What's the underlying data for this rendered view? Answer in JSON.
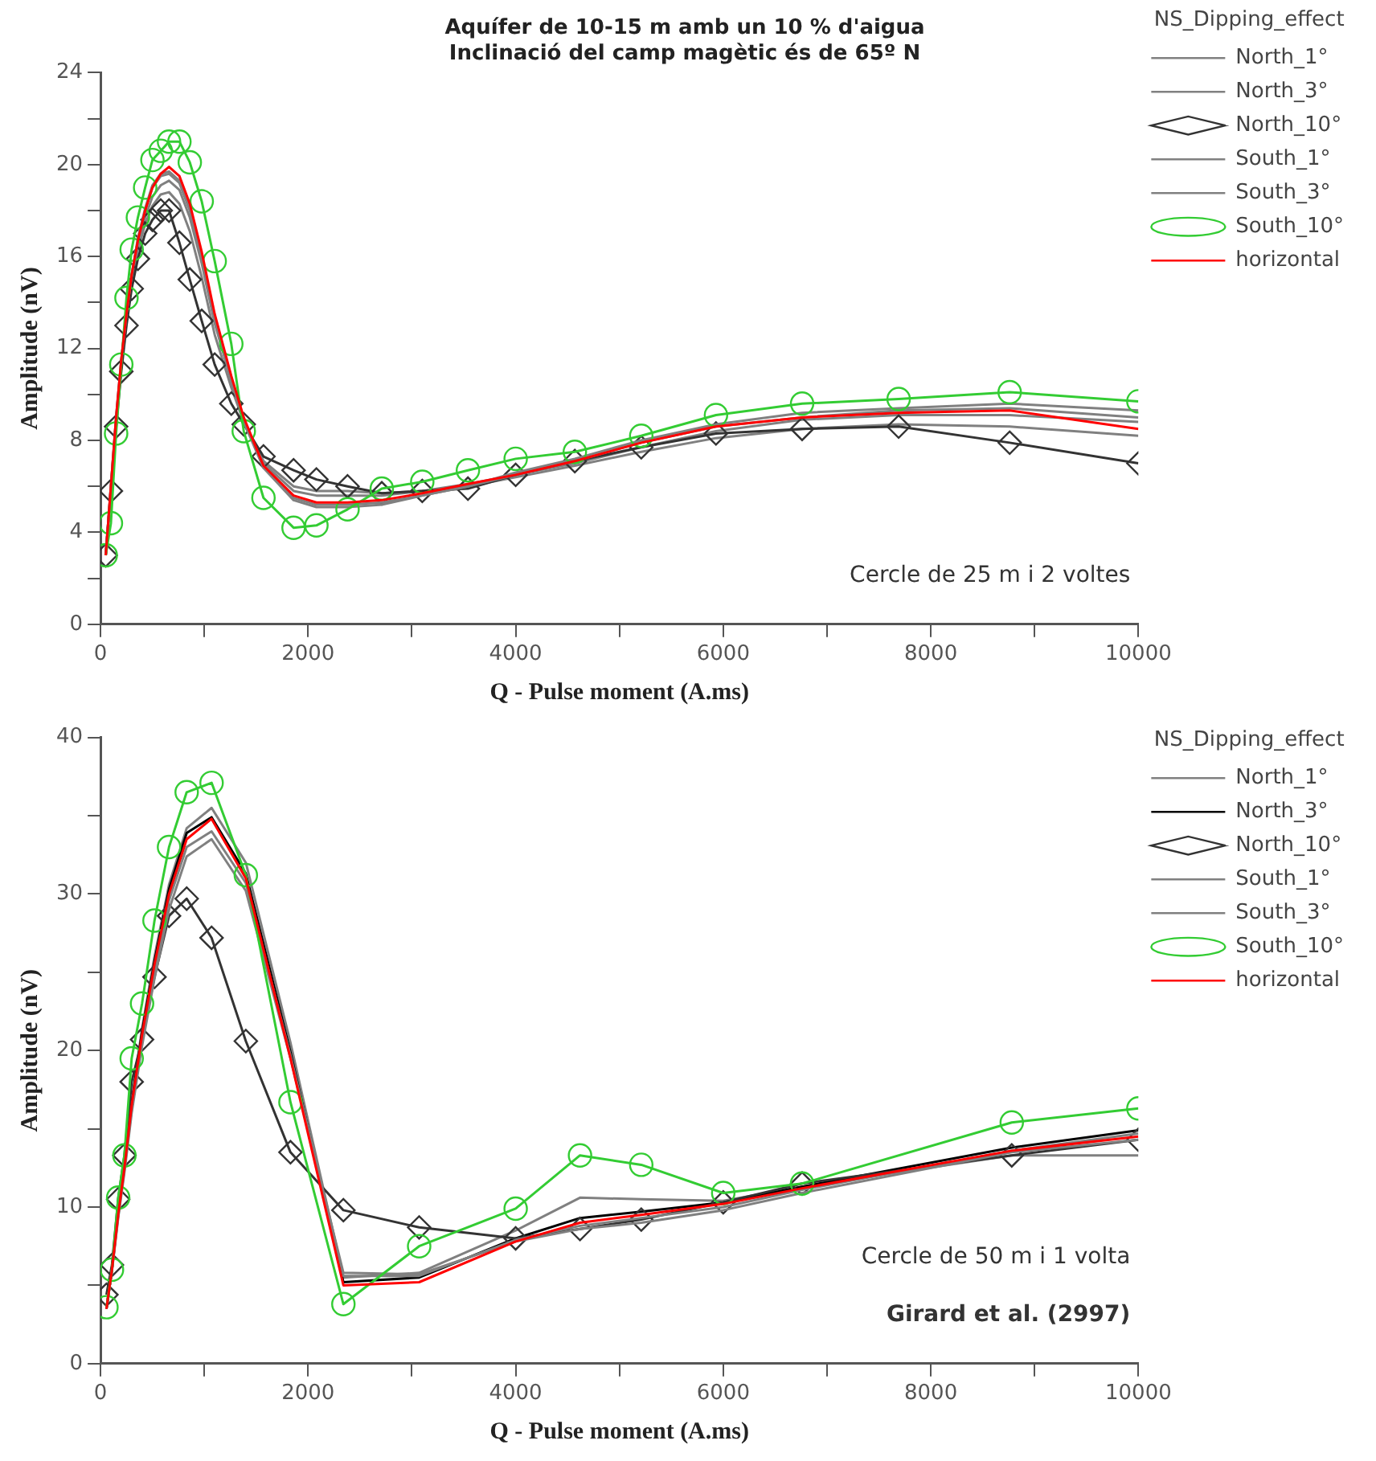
{
  "chart_data": [
    {
      "type": "line",
      "title": "Aquífer de 10-15 m amb un 10 % d'aigua",
      "subtitle": "Inclinació del camp magètic és de 65º N",
      "xlabel": "Q - Pulse moment (A.ms)",
      "ylabel": "Amplitude (nV)",
      "legend_title": "NS_Dipping_effect",
      "legend": "top right",
      "grid": false,
      "annotations": [
        "Cercle de 25 m i 2 voltes"
      ],
      "x": [
        50,
        100,
        150,
        200,
        250,
        300,
        360,
        430,
        500,
        580,
        660,
        760,
        860,
        975,
        1100,
        1260,
        1380,
        1570,
        1860,
        2080,
        2380,
        2710,
        3100,
        3540,
        4000,
        4570,
        5210,
        5930,
        6760,
        7690,
        8760,
        10000
      ],
      "xlim": [
        0,
        10000
      ],
      "xticks": [
        0,
        {
          "value": 1000,
          "label": null
        },
        2000,
        {
          "value": 3000,
          "label": null
        },
        4000,
        {
          "value": 5000,
          "label": null
        },
        6000,
        {
          "value": 7000,
          "label": null
        },
        8000,
        {
          "value": 9000,
          "label": null
        },
        10000
      ],
      "ylim": [
        0,
        24
      ],
      "yticks": [
        0,
        {
          "value": 2,
          "label": null
        },
        4,
        {
          "value": 6,
          "label": null
        },
        8,
        {
          "value": 10,
          "label": null
        },
        12,
        {
          "value": 14,
          "label": null
        },
        16,
        {
          "value": 18,
          "label": null
        },
        20,
        {
          "value": 22,
          "label": null
        },
        24
      ],
      "series": [
        {
          "name": "North_1°",
          "color": "#808080",
          "marker": "none",
          "values": [
            3.0,
            6.0,
            8.9,
            11.3,
            13.3,
            15.0,
            16.5,
            17.7,
            18.6,
            19.1,
            19.3,
            18.9,
            17.7,
            15.7,
            13.1,
            10.6,
            8.9,
            7.0,
            5.8,
            5.6,
            5.6,
            5.6,
            5.8,
            6.1,
            6.5,
            7.0,
            7.7,
            8.4,
            8.9,
            9.1,
            9.1,
            8.8
          ]
        },
        {
          "name": "North_3°",
          "color": "#808080",
          "marker": "none",
          "values": [
            3.0,
            5.9,
            8.8,
            11.2,
            13.2,
            14.8,
            16.3,
            17.4,
            18.2,
            18.7,
            18.8,
            18.3,
            17.1,
            15.1,
            12.6,
            10.3,
            8.8,
            7.1,
            6.0,
            5.8,
            5.8,
            5.7,
            5.8,
            6.0,
            6.4,
            6.9,
            7.5,
            8.1,
            8.5,
            8.7,
            8.6,
            8.2
          ]
        },
        {
          "name": "North_10°",
          "color": "#333333",
          "marker": "diamond",
          "values": [
            3.0,
            5.8,
            8.6,
            11.0,
            13.0,
            14.6,
            15.9,
            17.0,
            17.6,
            18.0,
            18.0,
            16.6,
            15.0,
            13.2,
            11.3,
            9.6,
            8.7,
            7.3,
            6.7,
            6.3,
            6.0,
            5.7,
            5.8,
            5.9,
            6.5,
            7.1,
            7.7,
            8.3,
            8.5,
            8.6,
            7.9,
            7.0
          ]
        },
        {
          "name": "South_1°",
          "color": "#808080",
          "marker": "none",
          "values": [
            3.0,
            6.0,
            9.0,
            11.5,
            13.5,
            15.2,
            16.8,
            18.1,
            19.1,
            19.6,
            19.7,
            19.3,
            18.1,
            16.0,
            13.3,
            10.7,
            8.9,
            6.9,
            5.5,
            5.2,
            5.2,
            5.3,
            5.6,
            6.0,
            6.5,
            7.1,
            7.9,
            8.6,
            9.0,
            9.3,
            9.4,
            9.0
          ]
        },
        {
          "name": "South_3°",
          "color": "#808080",
          "marker": "none",
          "values": [
            3.0,
            6.0,
            9.0,
            11.5,
            13.5,
            15.2,
            16.7,
            18.0,
            19.0,
            19.5,
            19.6,
            19.2,
            18.0,
            15.9,
            13.2,
            10.6,
            8.8,
            6.8,
            5.4,
            5.1,
            5.1,
            5.2,
            5.6,
            6.0,
            6.6,
            7.2,
            8.0,
            8.7,
            9.2,
            9.4,
            9.6,
            9.3
          ]
        },
        {
          "name": "South_10°",
          "color": "#33cc33",
          "marker": "circle",
          "values": [
            3.0,
            4.4,
            8.3,
            11.3,
            14.2,
            16.3,
            17.7,
            19.0,
            20.2,
            20.6,
            21.0,
            21.0,
            20.1,
            18.4,
            15.8,
            12.2,
            8.4,
            5.5,
            4.2,
            4.3,
            5.0,
            5.9,
            6.2,
            6.7,
            7.2,
            7.5,
            8.2,
            9.1,
            9.6,
            9.8,
            10.1,
            9.7
          ]
        },
        {
          "name": "horizontal",
          "color": "#ff0000",
          "marker": "none",
          "values": [
            3.0,
            6.0,
            9.0,
            11.5,
            13.5,
            15.2,
            16.7,
            18.0,
            19.0,
            19.6,
            19.9,
            19.5,
            18.3,
            16.2,
            13.5,
            10.8,
            9.0,
            6.9,
            5.6,
            5.3,
            5.3,
            5.4,
            5.7,
            6.1,
            6.5,
            7.1,
            7.9,
            8.6,
            9.0,
            9.2,
            9.3,
            8.5
          ]
        }
      ]
    },
    {
      "type": "line",
      "xlabel": "Q - Pulse moment (A.ms)",
      "ylabel": "Amplitude (nV)",
      "legend_title": "NS_Dipping_effect",
      "legend": "top right",
      "grid": false,
      "annotations": [
        "Cercle de 50 m i 1 volta",
        "Girard et al. (2997)"
      ],
      "x": [
        57,
        110,
        170,
        230,
        300,
        400,
        520,
        660,
        830,
        1070,
        1400,
        1830,
        2340,
        3070,
        4000,
        4620,
        5210,
        6000,
        6760,
        8780,
        10000
      ],
      "xlim": [
        0,
        10000
      ],
      "xticks": [
        0,
        {
          "value": 1000,
          "label": null
        },
        2000,
        {
          "value": 3000,
          "label": null
        },
        4000,
        {
          "value": 5000,
          "label": null
        },
        6000,
        {
          "value": 7000,
          "label": null
        },
        8000,
        {
          "value": 9000,
          "label": null
        },
        10000
      ],
      "ylim": [
        0,
        40
      ],
      "yticks": [
        0,
        {
          "value": 5,
          "label": null
        },
        10,
        {
          "value": 15,
          "label": null
        },
        20,
        {
          "value": 25,
          "label": null
        },
        30,
        {
          "value": 35,
          "label": null
        },
        40
      ],
      "series": [
        {
          "name": "North_1°",
          "color": "#808080",
          "marker": "none",
          "values": [
            3.5,
            6.0,
            9.6,
            12.7,
            16.8,
            21.4,
            26.0,
            30.6,
            34.2,
            35.5,
            32.0,
            20.5,
            5.5,
            5.8,
            8.5,
            10.6,
            10.5,
            10.4,
            11.3,
            13.3,
            13.3
          ]
        },
        {
          "name": "North_3°",
          "color": "#000000",
          "marker": "none",
          "values": [
            3.5,
            6.0,
            9.8,
            12.6,
            16.6,
            21.2,
            25.7,
            30.3,
            33.9,
            34.9,
            31.3,
            19.9,
            5.2,
            5.5,
            8.0,
            9.3,
            9.7,
            10.3,
            11.3,
            13.8,
            14.9
          ]
        },
        {
          "name": "North_10°",
          "color": "#333333",
          "marker": "diamond",
          "values": [
            4.4,
            6.3,
            10.5,
            13.3,
            18.0,
            20.7,
            24.7,
            28.6,
            29.7,
            27.2,
            20.6,
            13.5,
            9.8,
            8.7,
            8.0,
            8.6,
            9.2,
            10.3,
            11.5,
            13.3,
            14.3
          ]
        },
        {
          "name": "South_1°",
          "color": "#808080",
          "marker": "none",
          "values": [
            3.5,
            5.9,
            9.3,
            12.2,
            16.0,
            20.3,
            24.6,
            29.0,
            32.4,
            33.5,
            30.2,
            19.5,
            5.8,
            5.7,
            7.8,
            8.6,
            9.0,
            9.8,
            10.9,
            13.5,
            14.3
          ]
        },
        {
          "name": "South_3°",
          "color": "#808080",
          "marker": "none",
          "values": [
            3.5,
            6.0,
            9.4,
            12.4,
            16.3,
            20.7,
            25.1,
            29.6,
            33.0,
            34.0,
            30.7,
            19.7,
            5.6,
            5.6,
            7.9,
            8.8,
            9.3,
            10.0,
            11.1,
            13.6,
            14.7
          ]
        },
        {
          "name": "South_10°",
          "color": "#33cc33",
          "marker": "circle",
          "values": [
            3.6,
            6.0,
            10.6,
            13.3,
            19.5,
            23.0,
            28.3,
            33.0,
            36.5,
            37.1,
            31.2,
            16.7,
            3.8,
            7.5,
            9.9,
            13.3,
            12.7,
            10.9,
            11.5,
            15.4,
            16.3
          ]
        },
        {
          "name": "horizontal",
          "color": "#ff0000",
          "marker": "none",
          "values": [
            3.5,
            6.0,
            9.5,
            12.5,
            16.5,
            21.0,
            25.5,
            30.0,
            33.5,
            34.8,
            31.0,
            19.5,
            5.0,
            5.2,
            7.8,
            9.0,
            9.5,
            10.2,
            11.2,
            13.6,
            14.5
          ]
        }
      ]
    }
  ]
}
